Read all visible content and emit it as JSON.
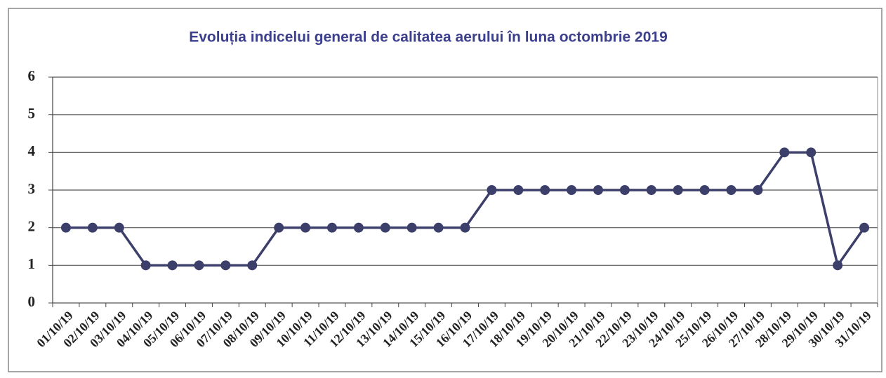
{
  "chart_data": {
    "type": "line",
    "title": "Evoluția indicelui general de calitatea aerului în luna octombrie 2019",
    "categories": [
      "01/10/19",
      "02/10/19",
      "03/10/19",
      "04/10/19",
      "05/10/19",
      "06/10/19",
      "07/10/19",
      "08/10/19",
      "09/10/19",
      "10/10/19",
      "11/10/19",
      "12/10/19",
      "13/10/19",
      "14/10/19",
      "15/10/19",
      "16/10/19",
      "17/10/19",
      "18/10/19",
      "19/10/19",
      "20/10/19",
      "21/10/19",
      "22/10/19",
      "23/10/19",
      "24/10/19",
      "25/10/19",
      "26/10/19",
      "27/10/19",
      "28/10/19",
      "29/10/19",
      "30/10/19",
      "31/10/19"
    ],
    "values": [
      2,
      2,
      2,
      1,
      1,
      1,
      1,
      1,
      2,
      2,
      2,
      2,
      2,
      2,
      2,
      2,
      3,
      3,
      3,
      3,
      3,
      3,
      3,
      3,
      3,
      3,
      3,
      4,
      4,
      1,
      2
    ],
    "color": "#3d3f6b",
    "ylim": [
      0,
      6
    ],
    "yticks": [
      0,
      1,
      2,
      3,
      4,
      5,
      6
    ],
    "grid": true
  }
}
